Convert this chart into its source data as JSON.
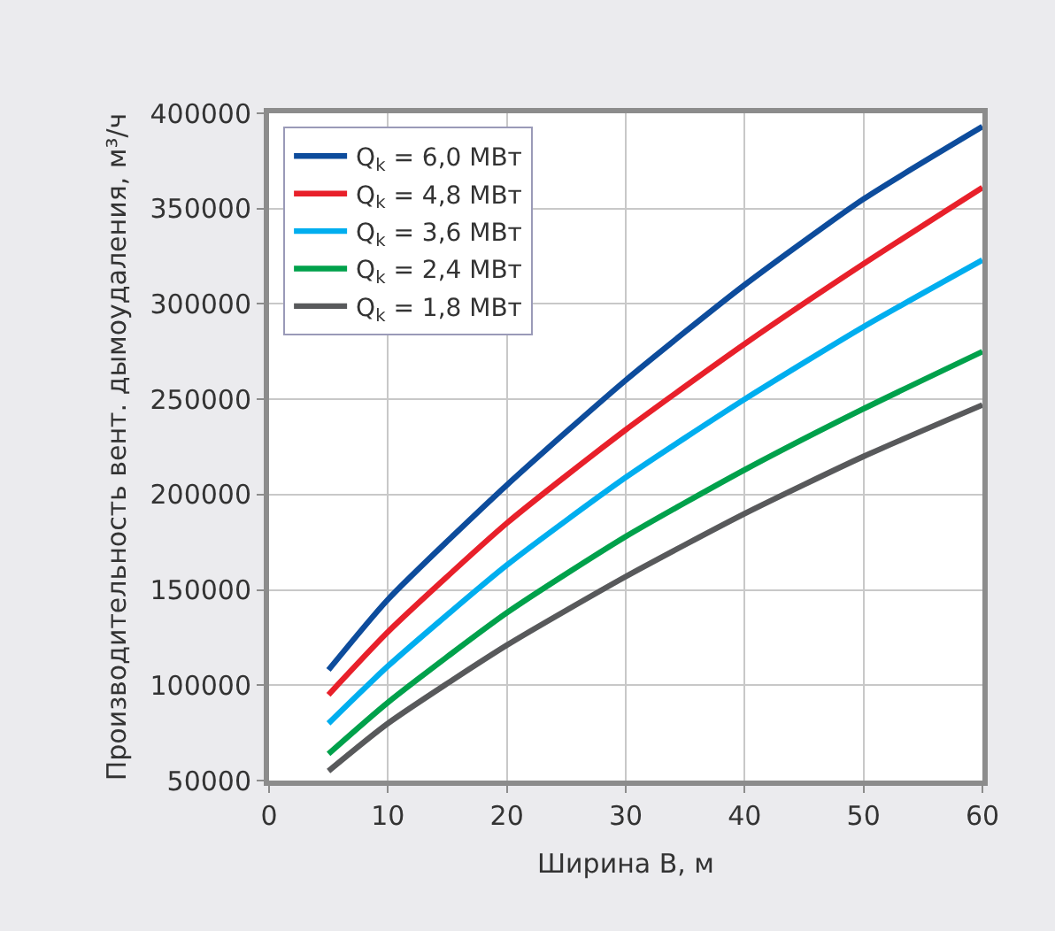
{
  "chart_data": {
    "type": "line",
    "xlabel": "Ширина B, м",
    "ylabel": "Производительность вент. дымоудаления, м³/ч",
    "x": [
      5,
      10,
      20,
      30,
      40,
      50,
      60
    ],
    "series": [
      {
        "name": "Q$_{k}$ = 6,0 МВт",
        "color": "#0d4c9c",
        "values": [
          108000,
          145000,
          205000,
          260000,
          310000,
          355000,
          393000
        ]
      },
      {
        "name": "Q$_{k}$ = 4,8 МВт",
        "color": "#e8202a",
        "values": [
          95000,
          128000,
          185000,
          234000,
          279000,
          321000,
          361000
        ]
      },
      {
        "name": "Q$_{k}$ = 3,6 МВт",
        "color": "#00aeef",
        "values": [
          80000,
          110000,
          163000,
          209000,
          250000,
          288000,
          323000
        ]
      },
      {
        "name": "Q$_{k}$ = 2,4 МВт",
        "color": "#00a14b",
        "values": [
          64000,
          91000,
          138000,
          178000,
          213000,
          245000,
          275000
        ]
      },
      {
        "name": "Q$_{k}$ = 1,8 МВт",
        "color": "#58595b",
        "values": [
          55000,
          80000,
          121000,
          157000,
          190000,
          220000,
          247000
        ]
      }
    ],
    "xlim": [
      0,
      60
    ],
    "xticks": [
      0,
      10,
      20,
      30,
      40,
      50,
      60
    ],
    "ylim": [
      50000,
      400000
    ],
    "yticks": [
      50000,
      100000,
      150000,
      200000,
      250000,
      300000,
      350000,
      400000
    ],
    "grid": true,
    "legend": "top left",
    "marker": "none",
    "line_style": "solid"
  }
}
